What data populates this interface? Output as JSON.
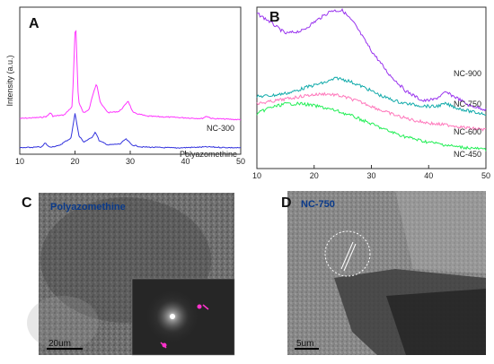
{
  "panels": {
    "A": {
      "letter": "A",
      "ylabel": "Intensity (a.u.)",
      "xticks": [
        "10",
        "20",
        "30",
        "40",
        "50"
      ],
      "xrange": [
        10,
        50
      ]
    },
    "B": {
      "letter": "B",
      "xticks": [
        "10",
        "20",
        "30",
        "40",
        "50"
      ],
      "xrange": [
        10,
        50
      ]
    },
    "C": {
      "letter": "C",
      "label": "Polyazomethine",
      "scalebar": "20um"
    },
    "D": {
      "letter": "D",
      "label": "NC-750",
      "scalebar": "5um"
    }
  },
  "chart_data": [
    {
      "type": "line",
      "panel": "A",
      "xlabel": "",
      "ylabel": "Intensity (a.u.)",
      "xlim": [
        10,
        50
      ],
      "series": [
        {
          "name": "NC-300",
          "color": "#ff33ff",
          "x": [
            10,
            14,
            15,
            15.5,
            16,
            18,
            19.5,
            20.1,
            20.6,
            21.5,
            22.5,
            23.4,
            23.9,
            24.6,
            26,
            28,
            29,
            29.6,
            30.5,
            33,
            38,
            43,
            43.8,
            44.8,
            50
          ],
          "y": [
            0.15,
            0.16,
            0.17,
            0.2,
            0.17,
            0.18,
            0.25,
            1.0,
            0.3,
            0.2,
            0.22,
            0.38,
            0.45,
            0.28,
            0.2,
            0.21,
            0.26,
            0.3,
            0.2,
            0.17,
            0.16,
            0.15,
            0.17,
            0.15,
            0.14
          ]
        },
        {
          "name": "Polyazomethine",
          "color": "#3333dd",
          "x": [
            10,
            14,
            14.6,
            15.3,
            17,
            19.3,
            20,
            20.7,
            21.6,
            23,
            23.7,
            24.4,
            26,
            28.2,
            29.2,
            30.3,
            32,
            38,
            44,
            50
          ],
          "y": [
            0.0,
            0.01,
            0.05,
            0.01,
            0.02,
            0.1,
            0.35,
            0.12,
            0.06,
            0.1,
            0.16,
            0.07,
            0.03,
            0.04,
            0.09,
            0.03,
            0.01,
            0.0,
            0.01,
            0.0
          ]
        }
      ]
    },
    {
      "type": "line",
      "panel": "B",
      "xlabel": "",
      "ylabel": "",
      "xlim": [
        10,
        50
      ],
      "series": [
        {
          "name": "NC-900",
          "color": "#9933ee",
          "x": [
            10,
            12,
            15,
            18,
            20,
            23,
            25,
            27,
            30,
            33,
            36,
            39,
            41,
            43,
            45,
            47,
            50
          ],
          "y": [
            1.0,
            0.95,
            0.86,
            0.88,
            0.94,
            1.02,
            1.02,
            0.93,
            0.74,
            0.58,
            0.46,
            0.39,
            0.4,
            0.45,
            0.41,
            0.36,
            0.33
          ]
        },
        {
          "name": "NC-750",
          "color": "#11aaaa",
          "x": [
            10,
            13,
            16,
            19,
            22,
            24,
            26,
            29,
            32,
            35,
            38,
            41,
            43,
            45,
            48,
            50
          ],
          "y": [
            0.42,
            0.43,
            0.45,
            0.49,
            0.52,
            0.55,
            0.53,
            0.48,
            0.42,
            0.38,
            0.36,
            0.35,
            0.37,
            0.34,
            0.31,
            0.3
          ]
        },
        {
          "name": "NC-600",
          "color": "#ff77bb",
          "x": [
            10,
            13,
            16,
            19,
            22,
            24,
            26,
            29,
            32,
            35,
            38,
            41,
            44,
            47,
            50
          ],
          "y": [
            0.37,
            0.39,
            0.41,
            0.43,
            0.44,
            0.43,
            0.41,
            0.37,
            0.32,
            0.28,
            0.25,
            0.23,
            0.22,
            0.2,
            0.19
          ]
        },
        {
          "name": "NC-450",
          "color": "#22ee55",
          "x": [
            10,
            12,
            15,
            18,
            21,
            24,
            27,
            30,
            33,
            36,
            39,
            42,
            45,
            48,
            50
          ],
          "y": [
            0.3,
            0.34,
            0.37,
            0.37,
            0.35,
            0.32,
            0.28,
            0.23,
            0.18,
            0.14,
            0.11,
            0.09,
            0.07,
            0.06,
            0.05
          ]
        }
      ]
    }
  ]
}
